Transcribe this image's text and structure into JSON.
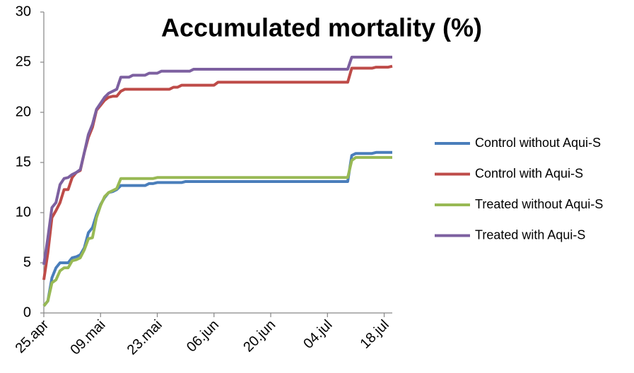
{
  "chart_data": {
    "type": "line",
    "title": "Accumulated mortality (%)",
    "categories": [
      "25.apr",
      null,
      null,
      null,
      null,
      null,
      null,
      null,
      null,
      null,
      null,
      null,
      null,
      null,
      "09.mai",
      null,
      null,
      null,
      null,
      null,
      null,
      null,
      null,
      null,
      null,
      null,
      null,
      null,
      "23.mai",
      null,
      null,
      null,
      null,
      null,
      null,
      null,
      null,
      null,
      null,
      null,
      null,
      null,
      "06.jun",
      null,
      null,
      null,
      null,
      null,
      null,
      null,
      null,
      null,
      null,
      null,
      null,
      null,
      "20.jun",
      null,
      null,
      null,
      null,
      null,
      null,
      null,
      null,
      null,
      null,
      null,
      null,
      null,
      "04.jul",
      null,
      null,
      null,
      null,
      null,
      null,
      null,
      null,
      null,
      null,
      null,
      null,
      null,
      "18.jul",
      null,
      null
    ],
    "series": [
      {
        "name": "Control without Aqui-S",
        "color": "#4a7ebb",
        "values": [
          0.7,
          1.2,
          3.5,
          4.5,
          5,
          5,
          5,
          5.5,
          5.6,
          5.8,
          6.5,
          8,
          8.5,
          9.8,
          10.8,
          11.5,
          12,
          12.1,
          12.3,
          12.7,
          12.7,
          12.7,
          12.7,
          12.7,
          12.7,
          12.7,
          12.9,
          12.9,
          13,
          13,
          13,
          13,
          13,
          13,
          13,
          13.1,
          13.1,
          13.1,
          13.1,
          13.1,
          13.1,
          13.1,
          13.1,
          13.1,
          13.1,
          13.1,
          13.1,
          13.1,
          13.1,
          13.1,
          13.1,
          13.1,
          13.1,
          13.1,
          13.1,
          13.1,
          13.1,
          13.1,
          13.1,
          13.1,
          13.1,
          13.1,
          13.1,
          13.1,
          13.1,
          13.1,
          13.1,
          13.1,
          13.1,
          13.1,
          13.1,
          13.1,
          13.1,
          13.1,
          13.1,
          13.1,
          15.7,
          15.9,
          15.9,
          15.9,
          15.9,
          15.9,
          16,
          16,
          16,
          16,
          16
        ]
      },
      {
        "name": "Control with Aqui-S",
        "color": "#be4b48",
        "values": [
          3.3,
          6,
          9.5,
          10.2,
          11,
          12.3,
          12.3,
          13.5,
          14,
          14.2,
          16,
          17.5,
          18.5,
          20.2,
          20.7,
          21.2,
          21.5,
          21.6,
          21.6,
          22.1,
          22.3,
          22.3,
          22.3,
          22.3,
          22.3,
          22.3,
          22.3,
          22.3,
          22.3,
          22.3,
          22.3,
          22.3,
          22.5,
          22.5,
          22.7,
          22.7,
          22.7,
          22.7,
          22.7,
          22.7,
          22.7,
          22.7,
          22.7,
          23,
          23,
          23,
          23,
          23,
          23,
          23,
          23,
          23,
          23,
          23,
          23,
          23,
          23,
          23,
          23,
          23,
          23,
          23,
          23,
          23,
          23,
          23,
          23,
          23,
          23,
          23,
          23,
          23,
          23,
          23,
          23,
          23,
          24.4,
          24.4,
          24.4,
          24.4,
          24.4,
          24.4,
          24.5,
          24.5,
          24.5,
          24.5,
          24.6
        ]
      },
      {
        "name": "Treated without Aqui-S",
        "color": "#98b954",
        "values": [
          0.7,
          1.2,
          3,
          3.3,
          4.2,
          4.5,
          4.5,
          5.2,
          5.3,
          5.5,
          6.3,
          7.4,
          7.5,
          9.5,
          10.7,
          11.6,
          12,
          12.2,
          12.4,
          13.4,
          13.4,
          13.4,
          13.4,
          13.4,
          13.4,
          13.4,
          13.4,
          13.4,
          13.5,
          13.5,
          13.5,
          13.5,
          13.5,
          13.5,
          13.5,
          13.5,
          13.5,
          13.5,
          13.5,
          13.5,
          13.5,
          13.5,
          13.5,
          13.5,
          13.5,
          13.5,
          13.5,
          13.5,
          13.5,
          13.5,
          13.5,
          13.5,
          13.5,
          13.5,
          13.5,
          13.5,
          13.5,
          13.5,
          13.5,
          13.5,
          13.5,
          13.5,
          13.5,
          13.5,
          13.5,
          13.5,
          13.5,
          13.5,
          13.5,
          13.5,
          13.5,
          13.5,
          13.5,
          13.5,
          13.5,
          13.5,
          15.2,
          15.5,
          15.5,
          15.5,
          15.5,
          15.5,
          15.5,
          15.5,
          15.5,
          15.5,
          15.5
        ]
      },
      {
        "name": "Treated with Aqui-S",
        "color": "#7d60a0",
        "values": [
          4.8,
          7.5,
          10.5,
          11,
          12.8,
          13.4,
          13.5,
          13.8,
          14,
          14.3,
          16,
          17.8,
          18.8,
          20.3,
          20.9,
          21.5,
          21.9,
          22.1,
          22.3,
          23.5,
          23.5,
          23.5,
          23.7,
          23.7,
          23.7,
          23.7,
          23.9,
          23.9,
          23.9,
          24.1,
          24.1,
          24.1,
          24.1,
          24.1,
          24.1,
          24.1,
          24.1,
          24.3,
          24.3,
          24.3,
          24.3,
          24.3,
          24.3,
          24.3,
          24.3,
          24.3,
          24.3,
          24.3,
          24.3,
          24.3,
          24.3,
          24.3,
          24.3,
          24.3,
          24.3,
          24.3,
          24.3,
          24.3,
          24.3,
          24.3,
          24.3,
          24.3,
          24.3,
          24.3,
          24.3,
          24.3,
          24.3,
          24.3,
          24.3,
          24.3,
          24.3,
          24.3,
          24.3,
          24.3,
          24.3,
          24.3,
          25.5,
          25.5,
          25.5,
          25.5,
          25.5,
          25.5,
          25.5,
          25.5,
          25.5,
          25.5,
          25.5
        ]
      }
    ],
    "ylim": [
      0,
      30
    ],
    "yticks": [
      0,
      5,
      10,
      15,
      20,
      25,
      30
    ],
    "grid": false,
    "legend": "right"
  }
}
